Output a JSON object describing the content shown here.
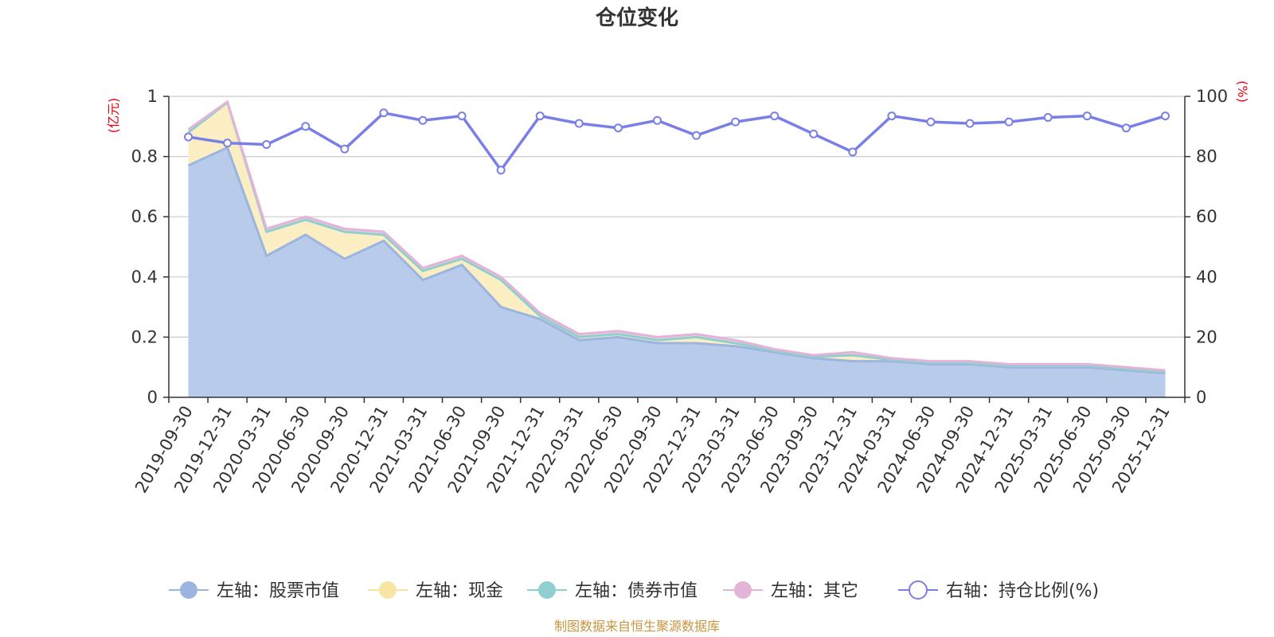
{
  "chart_data": {
    "type": "area",
    "title": "仓位变化",
    "source_note": "制图数据来自恒生聚源数据库",
    "left_axis": {
      "unit": "(亿元)",
      "min": 0,
      "max": 1,
      "ticks": [
        "0",
        "0.2",
        "0.4",
        "0.6",
        "0.8",
        "1"
      ]
    },
    "right_axis": {
      "unit": "(%)",
      "min": 0,
      "max": 100,
      "ticks": [
        "0",
        "20",
        "40",
        "60",
        "80",
        "100"
      ]
    },
    "grid": true,
    "legend_position": "bottom",
    "categories": [
      "2019-09-30",
      "2019-12-31",
      "2020-03-31",
      "2020-06-30",
      "2020-09-30",
      "2020-12-31",
      "2021-03-31",
      "2021-06-30",
      "2021-09-30",
      "2021-12-31",
      "2022-03-31",
      "2022-06-30",
      "2022-09-30",
      "2022-12-31",
      "2023-03-31",
      "2023-06-30",
      "2023-09-30",
      "2023-12-31",
      "2024-03-31",
      "2024-06-30",
      "2024-09-30",
      "2024-12-31",
      "2025-03-31",
      "2025-06-30",
      "2025-09-30",
      "2025-12-31"
    ],
    "series": [
      {
        "name": "左轴：股票市值",
        "axis": "left",
        "color": "#9bb5e0",
        "fill": "#b8cbea",
        "values": [
          0.77,
          0.83,
          0.47,
          0.54,
          0.46,
          0.52,
          0.39,
          0.44,
          0.3,
          0.26,
          0.19,
          0.2,
          0.18,
          0.18,
          0.17,
          0.15,
          0.13,
          0.12,
          0.12,
          0.11,
          0.11,
          0.1,
          0.1,
          0.1,
          0.09,
          0.08
        ]
      },
      {
        "name": "左轴：现金",
        "axis": "left",
        "color": "#f7e6a3",
        "fill": "#fbeec2",
        "values": [
          0.11,
          0.15,
          0.08,
          0.05,
          0.09,
          0.02,
          0.03,
          0.02,
          0.09,
          0.01,
          0.01,
          0.01,
          0.01,
          0.02,
          0.01,
          0.005,
          0.005,
          0.02,
          0.005,
          0.005,
          0.005,
          0.005,
          0.005,
          0.005,
          0.005,
          0.005
        ]
      },
      {
        "name": "左轴：债券市值",
        "axis": "left",
        "color": "#8fcfd0",
        "fill": "#b5e0e0",
        "values": [
          0,
          0,
          0,
          0,
          0,
          0,
          0,
          0,
          0,
          0,
          0,
          0,
          0,
          0,
          0,
          0,
          0,
          0,
          0,
          0,
          0,
          0,
          0,
          0,
          0,
          0
        ]
      },
      {
        "name": "左轴：其它",
        "axis": "left",
        "color": "#e3b3d8",
        "fill": "#efcfe6",
        "values": [
          0.01,
          0.002,
          0.01,
          0.01,
          0.01,
          0.01,
          0.01,
          0.01,
          0.01,
          0.01,
          0.01,
          0.01,
          0.01,
          0.01,
          0.01,
          0.005,
          0.005,
          0.01,
          0.005,
          0.005,
          0.005,
          0.005,
          0.005,
          0.005,
          0.005,
          0.005
        ]
      },
      {
        "name": "右轴：持仓比例(%)",
        "axis": "right",
        "color": "#7a7fe8",
        "values": [
          86.5,
          84.5,
          84,
          90,
          82.5,
          94.5,
          92,
          93.5,
          75.5,
          93.5,
          91,
          89.5,
          92,
          87,
          91.5,
          93.5,
          87.5,
          81.5,
          93.5,
          91.5,
          91,
          91.5,
          93,
          93.5,
          89.5,
          93.5
        ]
      }
    ]
  }
}
